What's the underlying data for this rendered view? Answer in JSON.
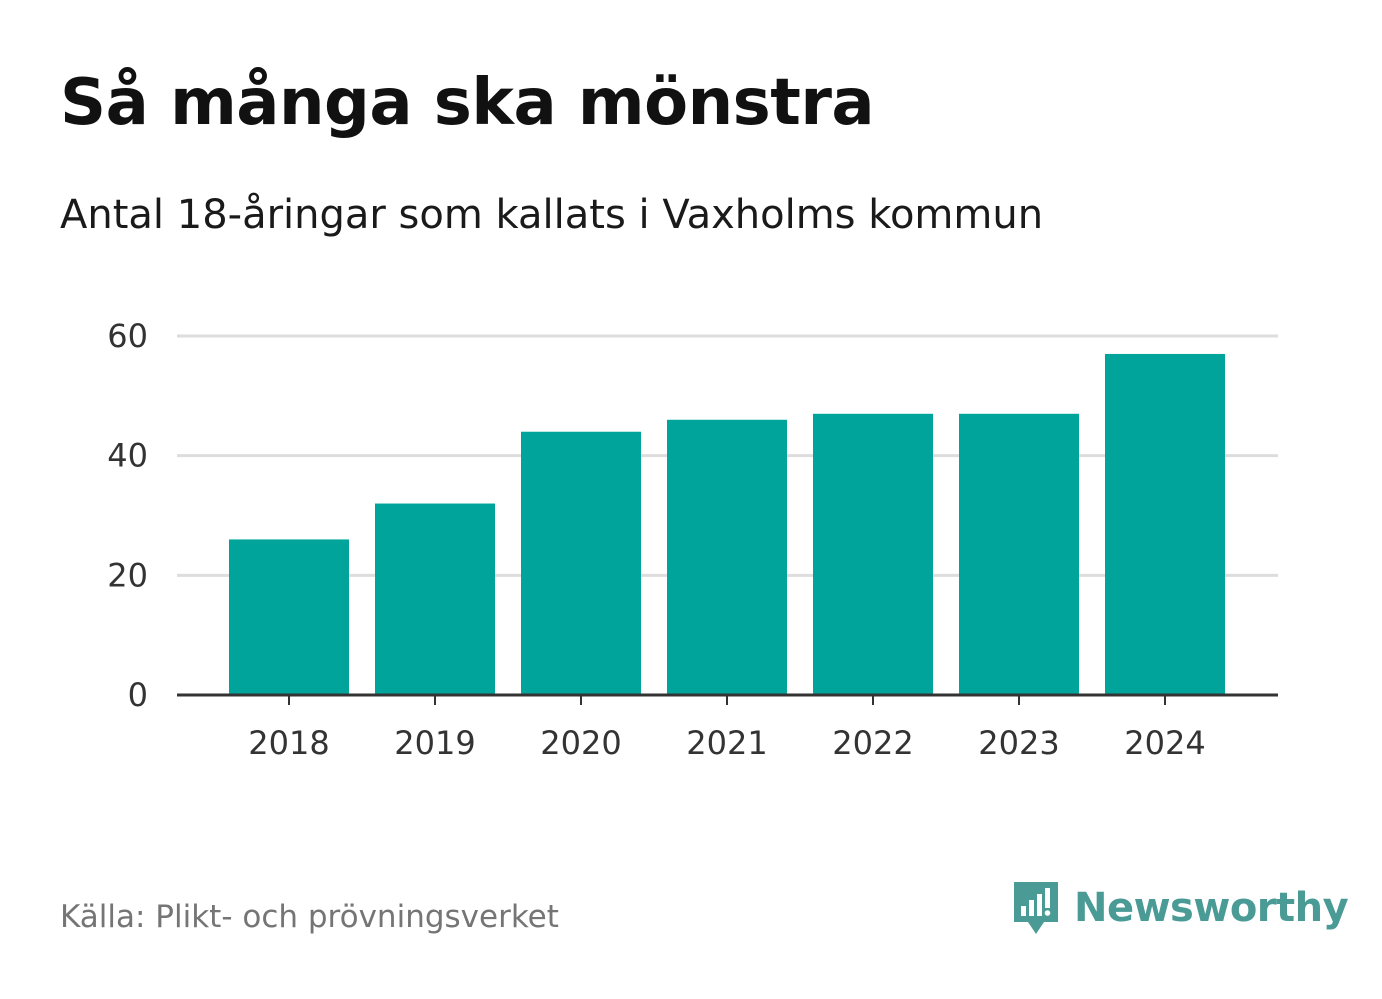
{
  "header": {
    "title": "Så många ska mönstra",
    "subtitle": "Antal 18-åringar som kallats i Vaxholms kommun"
  },
  "chart_data": {
    "type": "bar",
    "categories": [
      "2018",
      "2019",
      "2020",
      "2021",
      "2022",
      "2023",
      "2024"
    ],
    "values": [
      26,
      32,
      44,
      46,
      47,
      47,
      57
    ],
    "ylim": [
      0,
      60
    ],
    "yticks": [
      "0",
      "20",
      "40",
      "60"
    ],
    "ytick_values": [
      0,
      20,
      40,
      60
    ],
    "xlabel": "",
    "ylabel": "",
    "grid": true,
    "bar_color": "#00a49a",
    "grid_color": "#dddddd",
    "axis_color": "#333333"
  },
  "footer": {
    "source": "Källa: Plikt- och prövningsverket",
    "brand": "Newsworthy",
    "brand_icon": "newsworthy-logo-icon",
    "brand_color": "#4a9a96"
  }
}
